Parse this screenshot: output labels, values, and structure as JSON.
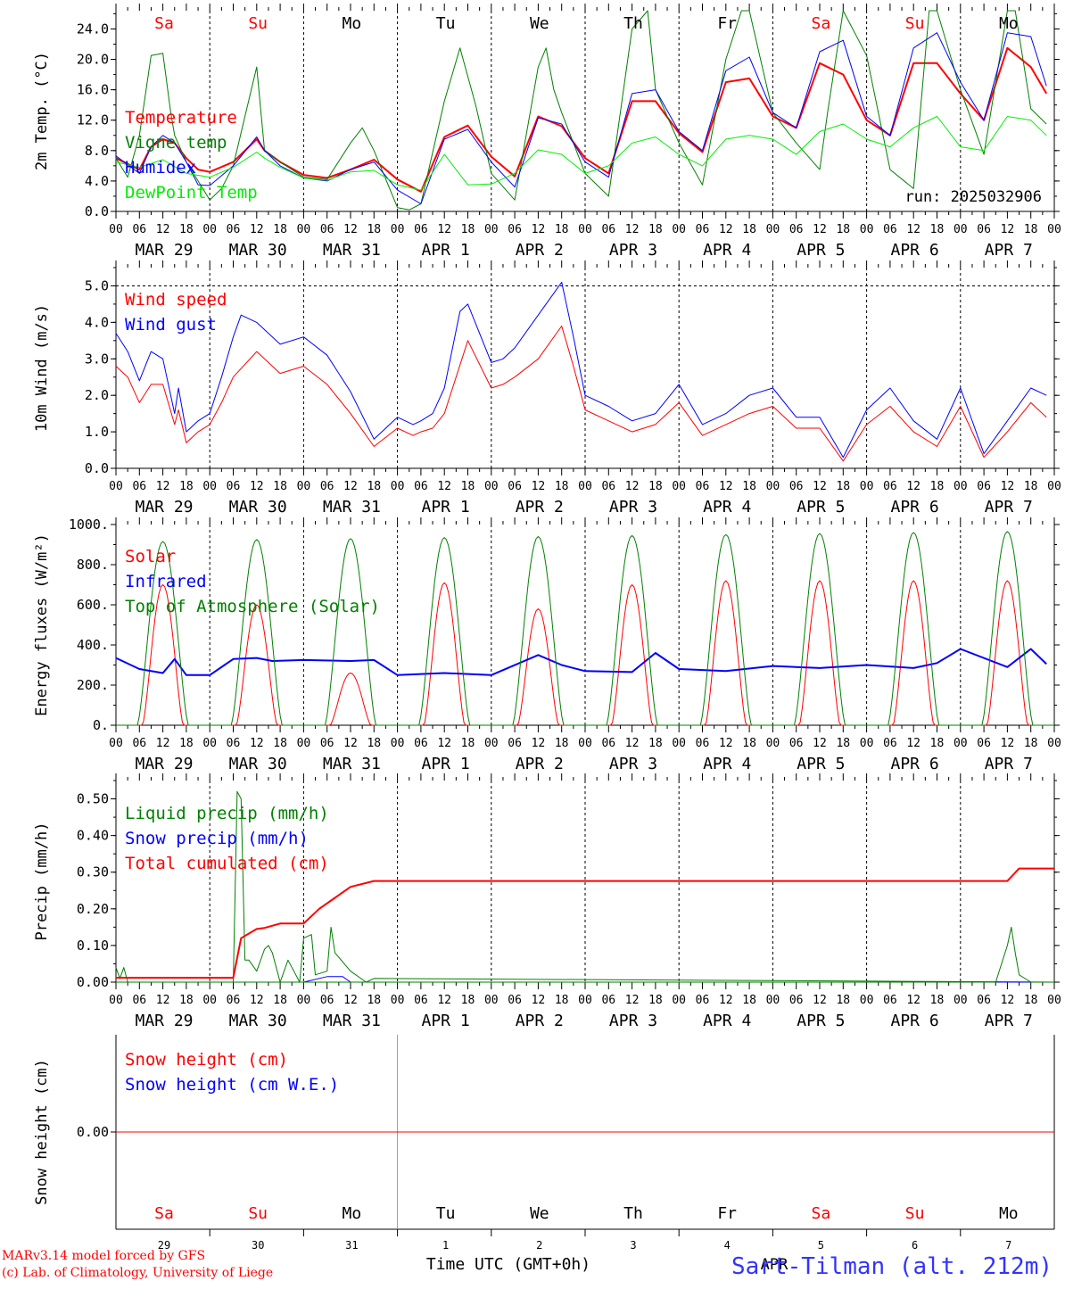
{
  "run_label": "run: 2025032906",
  "x_axis_title": "Time UTC (GMT+0h)",
  "credits": [
    "MARv3.14 model forced by GFS",
    "(c) Lab. of Climatology, University of Liege"
  ],
  "station": "Sart-Tilman (alt. 212m)",
  "station_overlap": "APR",
  "colors": {
    "red": "#ff0000",
    "green": "#008000",
    "blue": "#0000ff",
    "lightgreen": "#00ee00",
    "weekend": "#ff0000",
    "weekday": "#000000"
  },
  "days": [
    {
      "dow": "Sa",
      "date": "MAR 29",
      "num": "29",
      "weekend": true
    },
    {
      "dow": "Su",
      "date": "MAR 30",
      "num": "30",
      "weekend": true
    },
    {
      "dow": "Mo",
      "date": "MAR 31",
      "num": "31",
      "weekend": false
    },
    {
      "dow": "Tu",
      "date": "APR  1",
      "num": "1",
      "weekend": false
    },
    {
      "dow": "We",
      "date": "APR  2",
      "num": "2",
      "weekend": false
    },
    {
      "dow": "Th",
      "date": "APR  3",
      "num": "3",
      "weekend": false
    },
    {
      "dow": "Fr",
      "date": "APR  4",
      "num": "4",
      "weekend": false
    },
    {
      "dow": "Sa",
      "date": "APR  5",
      "num": "5",
      "weekend": true
    },
    {
      "dow": "Su",
      "date": "APR  6",
      "num": "6",
      "weekend": true
    },
    {
      "dow": "Mo",
      "date": "APR  7",
      "num": "7",
      "weekend": false
    }
  ],
  "hour_labels": [
    "00",
    "06",
    "12",
    "18"
  ],
  "chart_data": [
    {
      "type": "line",
      "ylabel": "2m Temp. (°C)",
      "ylim": [
        0,
        26.4
      ],
      "yticks": [
        0,
        4,
        8,
        12,
        16,
        20,
        24
      ],
      "ytick_labels": [
        "0.0",
        "4.0",
        "8.0",
        "12.0",
        "16.0",
        "20.0",
        "24.0"
      ],
      "x_unit": "hours since 29 Mar 00 UTC",
      "series": [
        {
          "name": "Temperature",
          "color": "red",
          "width": 2,
          "x": [
            0,
            6,
            9,
            12,
            15,
            18,
            21,
            24,
            30,
            36,
            38,
            42,
            48,
            54,
            60,
            66,
            72,
            78,
            84,
            90,
            96,
            102,
            108,
            114,
            120,
            126,
            132,
            138,
            144,
            150,
            156,
            162,
            168,
            174,
            180,
            186,
            192,
            198,
            204,
            210,
            216,
            222,
            228,
            234,
            238
          ],
          "y": [
            7.0,
            5.5,
            8.5,
            9.5,
            9.0,
            7.0,
            5.5,
            5.2,
            6.5,
            9.5,
            8.0,
            6.5,
            4.8,
            4.4,
            5.5,
            6.8,
            4.2,
            2.6,
            9.8,
            11.3,
            7.2,
            4.6,
            12.5,
            11.2,
            7.0,
            5.0,
            14.5,
            14.5,
            10.3,
            7.8,
            17.0,
            17.5,
            12.5,
            11.0,
            19.5,
            18.0,
            12.0,
            10.0,
            19.5,
            19.5,
            15.5,
            12.0,
            21.5,
            19.0,
            15.5
          ]
        },
        {
          "name": "Vigne temp",
          "color": "green",
          "width": 1,
          "x": [
            0,
            3,
            6,
            9,
            12,
            14,
            15,
            18,
            21,
            24,
            27,
            30,
            33,
            36,
            38,
            42,
            48,
            54,
            60,
            63,
            66,
            72,
            75,
            78,
            84,
            88,
            92,
            96,
            102,
            108,
            110,
            112,
            114,
            120,
            126,
            132,
            136,
            138,
            144,
            150,
            156,
            160,
            162,
            168,
            174,
            180,
            182,
            186,
            192,
            198,
            204,
            208,
            210,
            216,
            222,
            228,
            230,
            234,
            238
          ],
          "y": [
            7.0,
            4.5,
            10.0,
            20.5,
            20.8,
            13.0,
            10.0,
            6.5,
            4.0,
            1.5,
            3.0,
            6.0,
            12.5,
            19.0,
            8.0,
            6.5,
            4.5,
            4.2,
            9.0,
            11.0,
            8.0,
            0.5,
            0.2,
            1.0,
            14.5,
            21.5,
            14.0,
            5.0,
            1.5,
            19.0,
            21.5,
            16.0,
            13.0,
            5.0,
            2.0,
            24.0,
            26.4,
            16.0,
            9.0,
            3.5,
            20.0,
            26.4,
            26.4,
            13.0,
            9.0,
            5.5,
            13.0,
            26.4,
            20.5,
            5.5,
            3.0,
            26.4,
            26.4,
            16.0,
            7.5,
            26.4,
            26.4,
            13.5,
            11.5
          ]
        },
        {
          "name": "Humidex",
          "color": "blue",
          "width": 1,
          "x": [
            0,
            6,
            9,
            12,
            15,
            18,
            21,
            24,
            30,
            36,
            38,
            42,
            48,
            54,
            60,
            66,
            72,
            78,
            84,
            90,
            96,
            102,
            108,
            114,
            120,
            126,
            132,
            138,
            144,
            150,
            156,
            162,
            168,
            174,
            180,
            186,
            192,
            198,
            204,
            210,
            216,
            222,
            228,
            234,
            238
          ],
          "y": [
            7.3,
            5.0,
            8.5,
            10.0,
            9.0,
            6.5,
            3.5,
            3.4,
            6.0,
            9.8,
            8.0,
            6.0,
            4.4,
            4.0,
            5.5,
            6.5,
            2.8,
            1.0,
            9.5,
            10.8,
            6.5,
            3.2,
            12.3,
            11.5,
            6.5,
            4.5,
            15.5,
            16.0,
            10.5,
            8.0,
            18.5,
            20.3,
            13.0,
            11.0,
            21.0,
            22.5,
            12.5,
            10.0,
            21.5,
            23.5,
            17.0,
            12.0,
            23.5,
            23.0,
            16.5
          ]
        },
        {
          "name": "DewPoint Temp",
          "color": "lightgreen",
          "width": 1,
          "x": [
            0,
            6,
            12,
            18,
            24,
            30,
            36,
            38,
            42,
            48,
            54,
            60,
            66,
            72,
            78,
            84,
            90,
            96,
            102,
            108,
            114,
            120,
            126,
            132,
            138,
            144,
            150,
            156,
            162,
            168,
            174,
            180,
            186,
            192,
            198,
            204,
            210,
            216,
            222,
            228,
            234,
            238
          ],
          "y": [
            6.5,
            5.8,
            6.8,
            5.0,
            4.5,
            5.8,
            7.8,
            7.0,
            5.8,
            4.4,
            4.1,
            5.2,
            5.4,
            3.5,
            2.8,
            7.5,
            3.5,
            3.6,
            5.0,
            8.1,
            7.5,
            5.0,
            6.0,
            9.0,
            9.8,
            7.5,
            6.0,
            9.5,
            10.0,
            9.5,
            7.5,
            10.5,
            11.5,
            9.5,
            8.5,
            11.0,
            12.5,
            8.5,
            8.0,
            12.5,
            12.0,
            10.0
          ]
        }
      ]
    },
    {
      "type": "line",
      "ylabel": "10m Wind (m/s)",
      "ylim": [
        0,
        5.5
      ],
      "yticks": [
        0,
        1,
        2,
        3,
        4,
        5
      ],
      "ytick_labels": [
        "0.0",
        "1.0",
        "2.0",
        "3.0",
        "4.0",
        "5.0"
      ],
      "ref_line": 5.0,
      "series": [
        {
          "name": "Wind speed",
          "color": "red",
          "width": 1,
          "x": [
            0,
            3,
            6,
            9,
            12,
            15,
            16,
            18,
            21,
            24,
            27,
            30,
            36,
            42,
            48,
            54,
            60,
            66,
            72,
            76,
            78,
            81,
            84,
            90,
            96,
            99,
            102,
            108,
            114,
            117,
            120,
            126,
            132,
            138,
            144,
            150,
            156,
            162,
            168,
            174,
            180,
            186,
            192,
            198,
            204,
            210,
            216,
            222,
            228,
            234,
            238
          ],
          "y": [
            2.8,
            2.5,
            1.8,
            2.3,
            2.3,
            1.2,
            1.6,
            0.7,
            1.0,
            1.2,
            1.8,
            2.5,
            3.2,
            2.6,
            2.8,
            2.3,
            1.5,
            0.6,
            1.1,
            0.9,
            1.0,
            1.1,
            1.5,
            3.5,
            2.2,
            2.3,
            2.5,
            3.0,
            3.9,
            2.8,
            1.6,
            1.3,
            1.0,
            1.2,
            1.8,
            0.9,
            1.2,
            1.5,
            1.7,
            1.1,
            1.1,
            0.2,
            1.2,
            1.7,
            1.0,
            0.6,
            1.7,
            0.3,
            1.0,
            1.8,
            1.4
          ]
        },
        {
          "name": "Wind gust",
          "color": "blue",
          "width": 1,
          "x": [
            0,
            3,
            6,
            9,
            12,
            15,
            16,
            18,
            21,
            24,
            27,
            30,
            32,
            36,
            42,
            48,
            54,
            60,
            66,
            72,
            76,
            78,
            81,
            84,
            88,
            90,
            96,
            99,
            102,
            108,
            114,
            117,
            120,
            126,
            132,
            138,
            144,
            150,
            156,
            162,
            168,
            174,
            180,
            186,
            192,
            198,
            204,
            210,
            216,
            222,
            228,
            234,
            238
          ],
          "y": [
            3.7,
            3.2,
            2.4,
            3.2,
            3.0,
            1.5,
            2.2,
            1.0,
            1.3,
            1.5,
            2.5,
            3.6,
            4.2,
            4.0,
            3.4,
            3.6,
            3.1,
            2.1,
            0.8,
            1.4,
            1.2,
            1.3,
            1.5,
            2.2,
            4.3,
            4.5,
            2.9,
            3.0,
            3.3,
            4.2,
            5.1,
            3.6,
            2.0,
            1.7,
            1.3,
            1.5,
            2.3,
            1.2,
            1.5,
            2.0,
            2.2,
            1.4,
            1.4,
            0.3,
            1.6,
            2.2,
            1.3,
            0.8,
            2.2,
            0.4,
            1.3,
            2.2,
            2.0
          ]
        }
      ]
    },
    {
      "type": "line",
      "ylabel": "Energy fluxes (W/m²)",
      "ylim": [
        0,
        1000
      ],
      "yticks": [
        0,
        200,
        400,
        600,
        800,
        1000
      ],
      "ytick_labels": [
        "0.",
        "200.",
        "400.",
        "600.",
        "800.",
        "1000."
      ],
      "series": [
        {
          "name": "Solar",
          "color": "red",
          "width": 1,
          "curve": "solar",
          "day_peaks": [
            700,
            600,
            260,
            710,
            580,
            700,
            720,
            720,
            720,
            720
          ]
        },
        {
          "name": "Infrared",
          "color": "blue",
          "width": 2,
          "x": [
            0,
            6,
            12,
            15,
            18,
            24,
            30,
            36,
            40,
            48,
            60,
            66,
            72,
            84,
            96,
            108,
            114,
            120,
            132,
            138,
            144,
            156,
            168,
            180,
            192,
            204,
            210,
            216,
            228,
            234,
            238
          ],
          "y": [
            335,
            280,
            260,
            330,
            250,
            250,
            330,
            335,
            320,
            325,
            320,
            325,
            250,
            260,
            250,
            350,
            300,
            270,
            265,
            360,
            280,
            270,
            295,
            285,
            300,
            285,
            310,
            380,
            290,
            380,
            305
          ]
        },
        {
          "name": "Top of Atmosphere (Solar)",
          "color": "green",
          "width": 1,
          "curve": "toa",
          "day_peaks": [
            915,
            925,
            930,
            935,
            940,
            945,
            950,
            955,
            960,
            965
          ]
        }
      ]
    },
    {
      "type": "line",
      "ylabel": "Precip (mm/h)",
      "ylim": [
        0,
        0.55
      ],
      "yticks": [
        0,
        0.1,
        0.2,
        0.3,
        0.4,
        0.5
      ],
      "ytick_labels": [
        "0.00",
        "0.10",
        "0.20",
        "0.30",
        "0.40",
        "0.50"
      ],
      "series": [
        {
          "name": "Liquid precip (mm/h)",
          "color": "green",
          "width": 1,
          "x": [
            0,
            1,
            2,
            3,
            4,
            5,
            30,
            31,
            32,
            33,
            34,
            36,
            38,
            39,
            40,
            42,
            44,
            47,
            48,
            50,
            51,
            54,
            55,
            56,
            60,
            64,
            66,
            240
          ],
          "y": [
            0.04,
            0.01,
            0.04,
            0.0,
            0.0,
            0.0,
            0.0,
            0.52,
            0.5,
            0.06,
            0.06,
            0.03,
            0.09,
            0.1,
            0.08,
            0.0,
            0.06,
            0.0,
            0.12,
            0.13,
            0.02,
            0.03,
            0.15,
            0.08,
            0.03,
            0.0,
            0.01,
            0.0
          ]
        },
        {
          "name": "Snow precip (mm/h)",
          "color": "blue",
          "width": 1,
          "x": [
            0,
            48,
            54,
            58,
            60,
            240
          ],
          "y": [
            0.0,
            0.0,
            0.015,
            0.015,
            0.0,
            0.0
          ]
        },
        {
          "name": "Total cumulated (cm)",
          "color": "red",
          "width": 2,
          "x": [
            0,
            30,
            32,
            36,
            38,
            42,
            48,
            52,
            56,
            60,
            66,
            72,
            228,
            231,
            240
          ],
          "y": [
            0.012,
            0.012,
            0.12,
            0.145,
            0.148,
            0.16,
            0.16,
            0.2,
            0.23,
            0.26,
            0.276,
            0.276,
            0.276,
            0.31,
            0.31
          ]
        },
        {
          "name": "_liquid_second",
          "color": "green",
          "width": 1,
          "x": [
            0,
            225,
            228,
            229,
            230,
            231,
            234,
            240
          ],
          "y": [
            0.0,
            0.0,
            0.1,
            0.15,
            0.08,
            0.02,
            0.0,
            0.0
          ]
        }
      ]
    },
    {
      "type": "line",
      "ylabel": "Snow height (cm)",
      "ylim": [
        -1,
        1
      ],
      "yticks": [
        0
      ],
      "ytick_labels": [
        "0.00"
      ],
      "series": [
        {
          "name": "Snow height (cm)",
          "color": "red",
          "width": 1,
          "x": [
            0,
            240
          ],
          "y": [
            0,
            0
          ]
        },
        {
          "name": "Snow height (cm W.E.)",
          "color": "blue",
          "width": 1,
          "x": [],
          "y": []
        }
      ]
    }
  ]
}
